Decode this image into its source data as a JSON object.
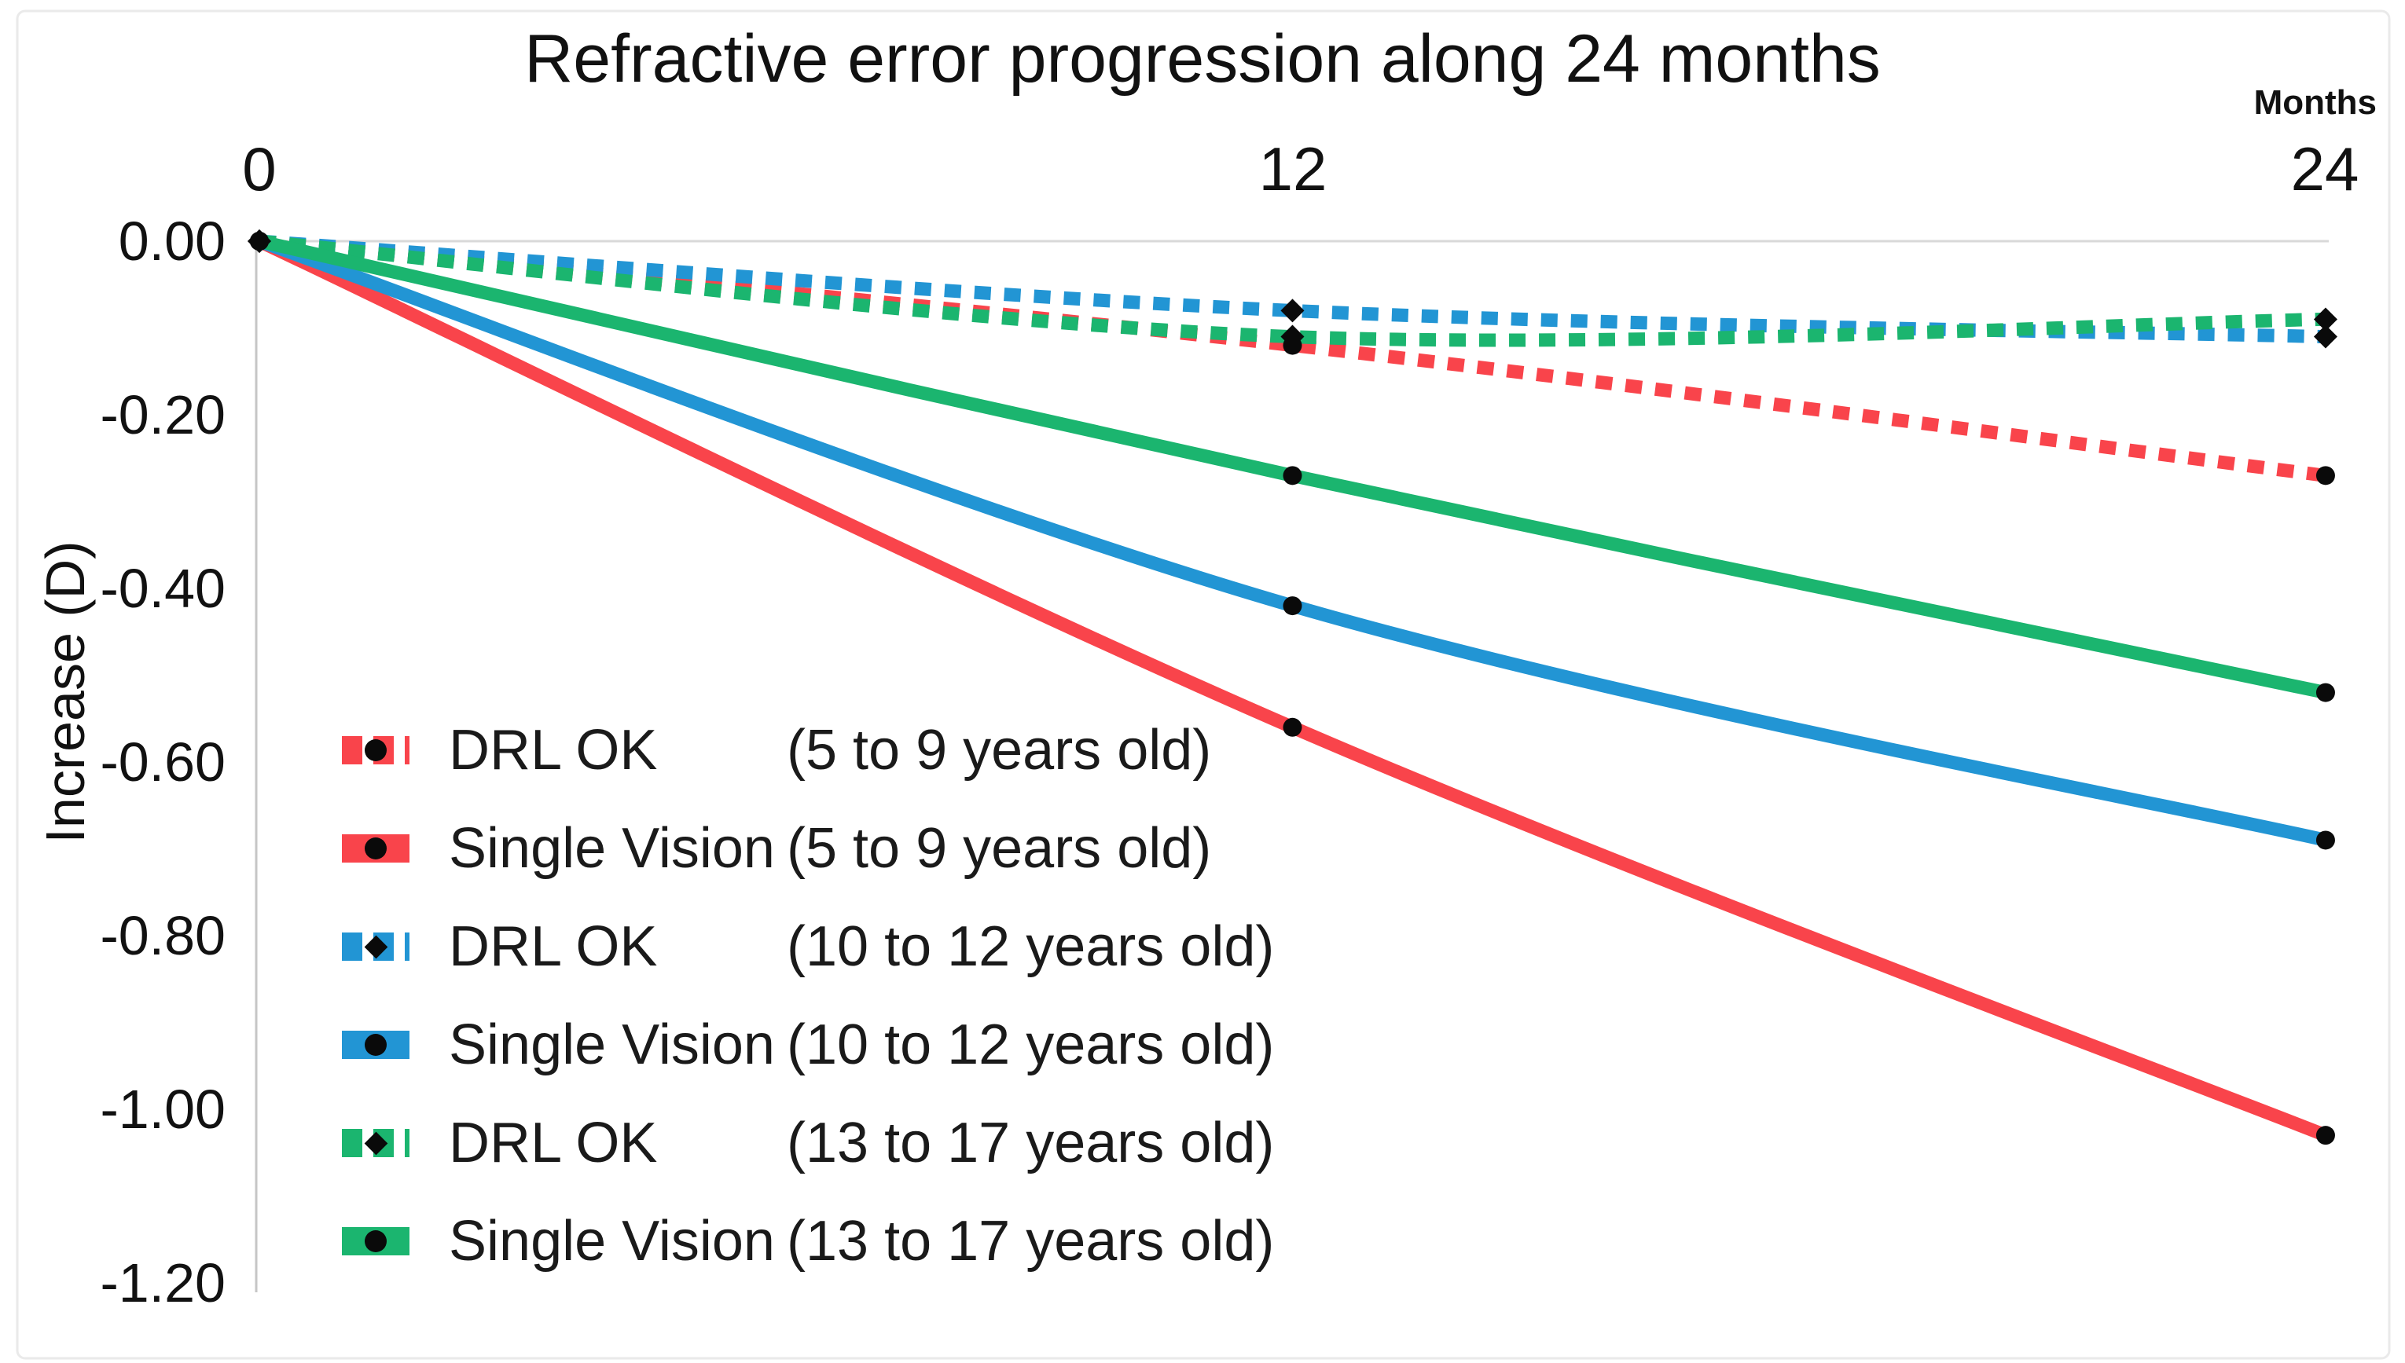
{
  "figure": {
    "title": "Refractive error progression along 24 months",
    "x_axis_unit_label": "Months",
    "y_axis_title": "Increase (D)"
  },
  "chart_data": {
    "type": "line",
    "title": "Refractive error progression along 24 months",
    "xlabel": "Months",
    "ylabel": "Increase (D)",
    "x": [
      0,
      12,
      24
    ],
    "x_tick_labels": [
      "0",
      "12",
      "24"
    ],
    "y_tick_labels": [
      "0.00",
      "-0.20",
      "-0.40",
      "-0.60",
      "-0.80",
      "-1.00",
      "-1.20"
    ],
    "xlim": [
      0,
      24
    ],
    "ylim": [
      -1.2,
      0.0
    ],
    "grid": "only zero baseline shown at top",
    "legend_position": "inside-left-middle",
    "axis_color": "#C6C6C6",
    "zero_line_color": "#D9D9D9",
    "marker_color": "#0A0A0A",
    "series": [
      {
        "name": "DRL OK",
        "age_group": "(5 to 9 years old)",
        "color": "#F9444B",
        "line_style": "dashed",
        "marker": "circle",
        "values": [
          0.0,
          -0.12,
          -0.27
        ]
      },
      {
        "name": "Single Vision",
        "age_group": "(5 to 9 years old)",
        "color": "#F9444B",
        "line_style": "solid",
        "marker": "circle",
        "values": [
          0.0,
          -0.56,
          -1.03
        ]
      },
      {
        "name": "DRL OK",
        "age_group": "(10 to 12 years old)",
        "color": "#2295D4",
        "line_style": "dashed",
        "marker": "diamond",
        "values": [
          0.0,
          -0.08,
          -0.11
        ]
      },
      {
        "name": "Single Vision",
        "age_group": "(10 to 12 years old)",
        "color": "#2295D4",
        "line_style": "solid",
        "marker": "circle",
        "values": [
          0.0,
          -0.42,
          -0.69
        ]
      },
      {
        "name": "DRL OK",
        "age_group": "(13 to 17 years old)",
        "color": "#1BB56F",
        "line_style": "dashed",
        "marker": "diamond",
        "values": [
          0.0,
          -0.11,
          -0.09
        ]
      },
      {
        "name": "Single Vision",
        "age_group": "(13 to 17 years old)",
        "color": "#1BB56F",
        "line_style": "solid",
        "marker": "circle",
        "values": [
          0.0,
          -0.27,
          -0.52
        ]
      }
    ]
  }
}
